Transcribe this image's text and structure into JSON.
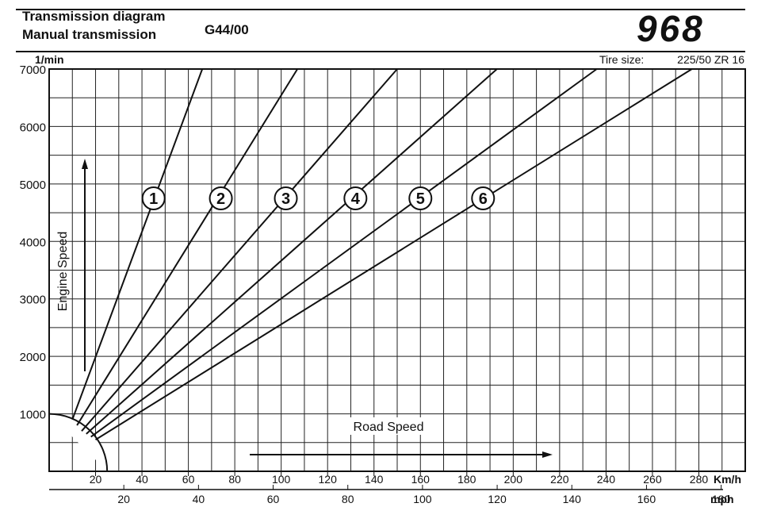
{
  "header": {
    "title_line1": "Transmission diagram",
    "title_line2": "Manual transmission",
    "code": "G44/00",
    "model": "968"
  },
  "chart_data": {
    "type": "line",
    "title": "Transmission diagram",
    "subtitle": "Manual transmission",
    "y_unit_label": "1/min",
    "ylabel": "Engine Speed",
    "xlabel": "Road Speed",
    "x_unit_label": "Km/h",
    "x2_unit_label": "mph",
    "tire_size_label": "Tire size:",
    "tire_size_value": "225/50 ZR 16",
    "xlim": [
      0,
      300
    ],
    "ylim": [
      0,
      7000
    ],
    "grid": true,
    "y_ticks": [
      "1000",
      "2000",
      "3000",
      "4000",
      "5000",
      "6000",
      "7000"
    ],
    "x_ticks_kmh": [
      "20",
      "40",
      "60",
      "80",
      "100",
      "120",
      "140",
      "160",
      "180",
      "200",
      "220",
      "240",
      "260",
      "280"
    ],
    "x_ticks_mph": [
      "20",
      "40",
      "60",
      "80",
      "100",
      "120",
      "140",
      "160",
      "180"
    ],
    "series": [
      {
        "name": "1",
        "x": [
          10,
          66
        ],
        "y": [
          900,
          7000
        ],
        "label_at": [
          45,
          4750
        ]
      },
      {
        "name": "2",
        "x": [
          12,
          107
        ],
        "y": [
          800,
          7000
        ],
        "label_at": [
          74,
          4750
        ]
      },
      {
        "name": "3",
        "x": [
          14,
          150
        ],
        "y": [
          700,
          7000
        ],
        "label_at": [
          102,
          4750
        ]
      },
      {
        "name": "4",
        "x": [
          16,
          193
        ],
        "y": [
          650,
          7000
        ],
        "label_at": [
          132,
          4750
        ]
      },
      {
        "name": "5",
        "x": [
          18,
          236
        ],
        "y": [
          600,
          7000
        ],
        "label_at": [
          160,
          4750
        ]
      },
      {
        "name": "6",
        "x": [
          20,
          277
        ],
        "y": [
          550,
          7000
        ],
        "label_at": [
          187,
          4750
        ]
      }
    ]
  }
}
